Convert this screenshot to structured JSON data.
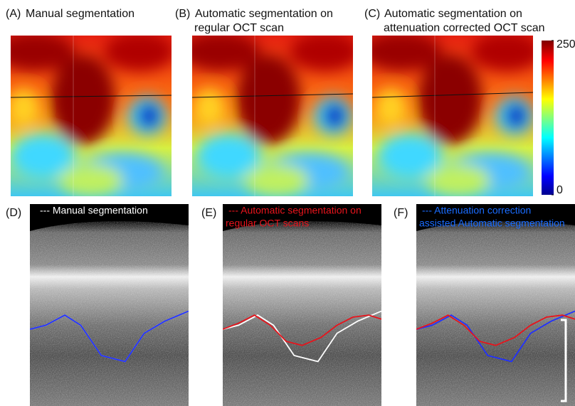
{
  "panels": [
    {
      "label": "(A)",
      "title": [
        "Manual segmentation"
      ]
    },
    {
      "label": "(B)",
      "title": [
        "Automatic segmentation on",
        "regular OCT scan"
      ]
    },
    {
      "label": "(C)",
      "title": [
        "Automatic segmentation on",
        "attenuation corrected OCT scan"
      ]
    }
  ],
  "colorbar": {
    "lim": [
      0,
      250
    ],
    "ticks": [
      0,
      250
    ]
  },
  "oct_panels": [
    {
      "label": "(D)",
      "legend": [
        "--- Manual segmentation"
      ]
    },
    {
      "label": "(E)",
      "legend": [
        "--- Automatic segmentation on",
        "regular OCT scans"
      ]
    },
    {
      "label": "(F)",
      "legend": [
        "--- Attenuation correction",
        "assisted Automatic segmentation"
      ]
    }
  ]
}
